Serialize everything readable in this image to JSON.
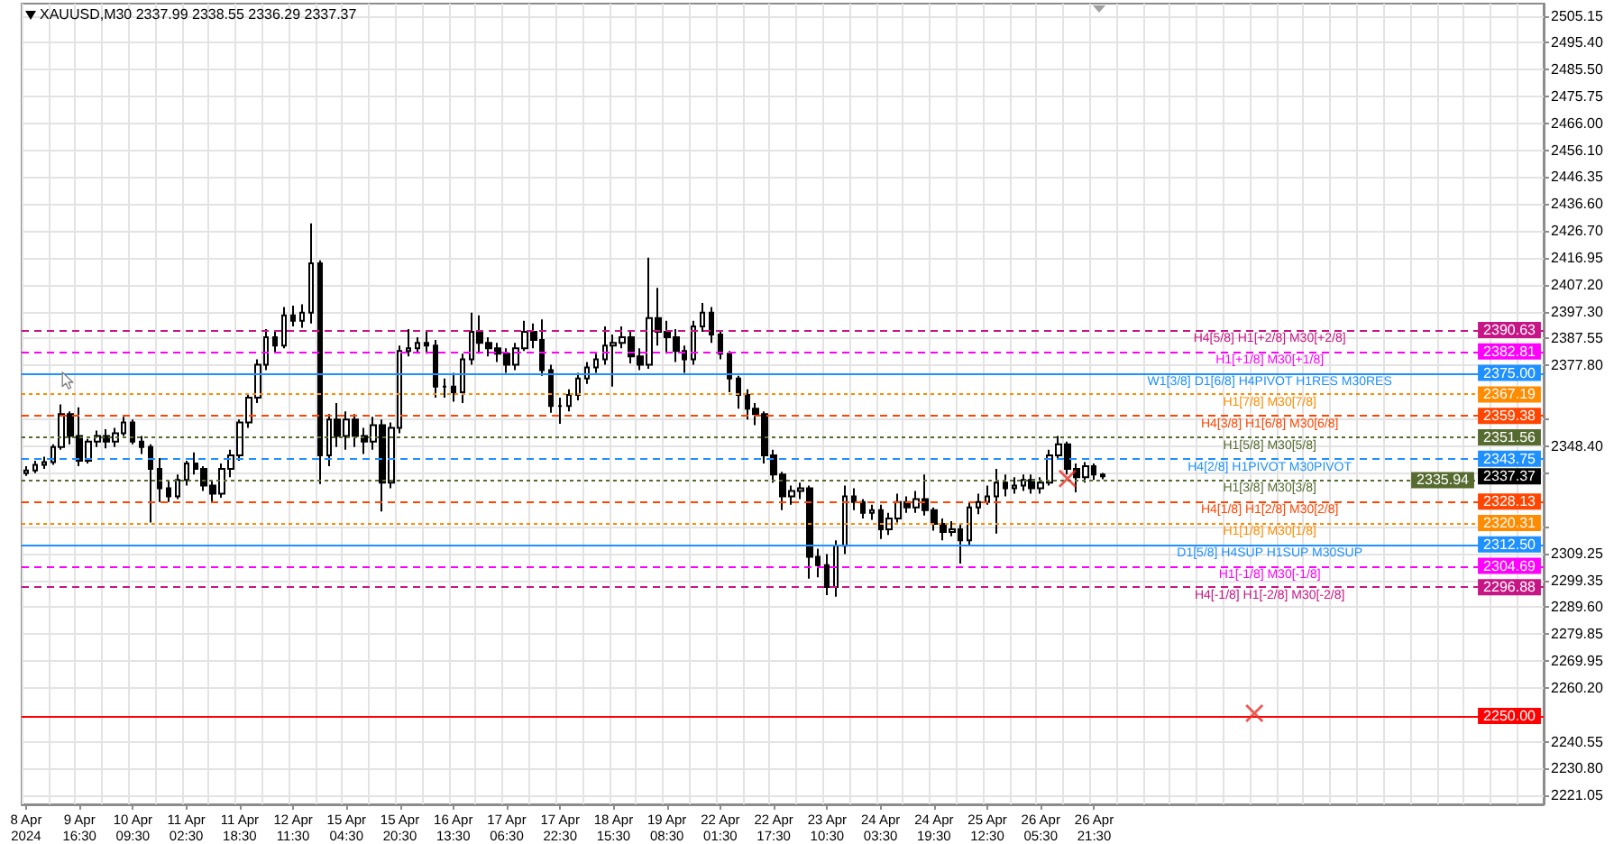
{
  "chart_data": {
    "type": "candlestick",
    "title": "XAUUSD,M30 2337.99 2338.55 2336.29 2337.37",
    "color": "#000000",
    "grid": true,
    "categories": [
      "8 Apr 2024",
      null,
      null,
      null,
      null,
      null,
      "9 Apr 16:30",
      null,
      null,
      null,
      null,
      null,
      "10 Apr 09:30",
      null,
      null,
      null,
      null,
      null,
      "11 Apr 02:30",
      null,
      null,
      null,
      null,
      null,
      "11 Apr 18:30",
      null,
      null,
      null,
      null,
      null,
      "12 Apr 11:30",
      null,
      null,
      null,
      null,
      null,
      "15 Apr 04:30",
      null,
      null,
      null,
      null,
      null,
      "15 Apr 20:30",
      null,
      null,
      null,
      null,
      null,
      "16 Apr 13:30",
      null,
      null,
      null,
      null,
      null,
      "17 Apr 06:30",
      null,
      null,
      null,
      null,
      null,
      "17 Apr 22:30",
      null,
      null,
      null,
      null,
      null,
      "18 Apr 15:30",
      null,
      null,
      null,
      null,
      null,
      "19 Apr 08:30",
      null,
      null,
      null,
      null,
      null,
      "22 Apr 01:30",
      null,
      null,
      null,
      null,
      null,
      "22 Apr 17:30",
      null,
      null,
      null,
      null,
      null,
      "23 Apr 10:30",
      null,
      null,
      null,
      null,
      null,
      "24 Apr 03:30",
      null,
      null,
      null,
      null,
      null,
      "24 Apr 19:30",
      null,
      null,
      null,
      null,
      null,
      "25 Apr 12:30",
      null,
      null,
      null,
      null,
      null,
      "26 Apr 05:30",
      null,
      null,
      null,
      null,
      null,
      "26 Apr 21:30",
      null,
      null,
      null,
      null,
      null,
      null,
      null,
      null,
      null,
      null,
      null,
      null,
      null,
      null,
      null,
      null,
      null,
      null,
      null,
      null,
      null,
      null,
      null,
      null,
      null,
      null,
      null,
      null,
      null,
      null,
      null,
      null,
      null,
      null,
      null,
      null,
      null,
      null,
      null,
      null,
      null,
      null,
      null,
      null,
      null,
      null,
      null,
      null,
      null,
      null
    ],
    "ohlc": [
      [
        2338.5,
        2341,
        2337.5,
        2339.5
      ],
      [
        2339.5,
        2343,
        2338.5,
        2341.5
      ],
      [
        2341.5,
        2344.5,
        2340,
        2342.5
      ],
      [
        2342.5,
        2349,
        2341.5,
        2348
      ],
      [
        2348,
        2363.5,
        2347,
        2360
      ],
      [
        2360,
        2361,
        2349,
        2352
      ],
      [
        2352,
        2362.5,
        2341,
        2343
      ],
      [
        2343,
        2351,
        2342,
        2350
      ],
      [
        2350,
        2354,
        2348,
        2352
      ],
      [
        2352,
        2354.5,
        2347.5,
        2350
      ],
      [
        2350,
        2355,
        2348,
        2353
      ],
      [
        2353,
        2359,
        2352,
        2357
      ],
      [
        2357,
        2358,
        2349,
        2350
      ],
      [
        2350,
        2352,
        2345.5,
        2348
      ],
      [
        2348,
        2349,
        2320.5,
        2340
      ],
      [
        2340,
        2344,
        2328,
        2333
      ],
      [
        2333,
        2336,
        2328,
        2330
      ],
      [
        2330,
        2338,
        2329,
        2336
      ],
      [
        2336,
        2343,
        2334,
        2342
      ],
      [
        2342,
        2346,
        2338,
        2340
      ],
      [
        2340,
        2341,
        2332,
        2334
      ],
      [
        2334,
        2336,
        2328,
        2331
      ],
      [
        2331,
        2342,
        2329.5,
        2340
      ],
      [
        2340,
        2347,
        2337,
        2345
      ],
      [
        2345,
        2358,
        2343,
        2357
      ],
      [
        2357,
        2367,
        2355,
        2366
      ],
      [
        2366,
        2380,
        2364,
        2378
      ],
      [
        2378,
        2391,
        2376,
        2388
      ],
      [
        2388,
        2390,
        2382.5,
        2385
      ],
      [
        2385,
        2399,
        2384,
        2396
      ],
      [
        2396,
        2399.5,
        2392,
        2394
      ],
      [
        2394,
        2400,
        2391.5,
        2397
      ],
      [
        2397,
        2429.5,
        2393,
        2415
      ],
      [
        2415,
        2416,
        2334.5,
        2345
      ],
      [
        2345,
        2360,
        2341,
        2358
      ],
      [
        2358,
        2364,
        2348,
        2352
      ],
      [
        2352,
        2361,
        2347,
        2358
      ],
      [
        2358,
        2360,
        2348,
        2352
      ],
      [
        2352,
        2355,
        2345.5,
        2350
      ],
      [
        2350,
        2359,
        2347,
        2356
      ],
      [
        2356,
        2358,
        2324.5,
        2335
      ],
      [
        2335,
        2357,
        2333,
        2355
      ],
      [
        2355,
        2385,
        2353,
        2383
      ],
      [
        2383,
        2391,
        2381,
        2384
      ],
      [
        2384,
        2388,
        2382,
        2386
      ],
      [
        2386,
        2390,
        2382,
        2385
      ],
      [
        2385,
        2387,
        2366,
        2370
      ],
      [
        2370,
        2373,
        2366,
        2370
      ],
      [
        2370,
        2375,
        2364.5,
        2368
      ],
      [
        2368,
        2382,
        2364,
        2380
      ],
      [
        2380,
        2397,
        2378,
        2390
      ],
      [
        2390,
        2396,
        2382,
        2386
      ],
      [
        2386,
        2388,
        2381,
        2384
      ],
      [
        2384,
        2386,
        2379,
        2382
      ],
      [
        2382,
        2384,
        2375,
        2378
      ],
      [
        2378,
        2386,
        2376,
        2384
      ],
      [
        2384,
        2394,
        2383,
        2390
      ],
      [
        2390,
        2393,
        2384,
        2387
      ],
      [
        2387,
        2394.5,
        2374,
        2376
      ],
      [
        2376,
        2378,
        2360.5,
        2363
      ],
      [
        2363,
        2366,
        2356.5,
        2363
      ],
      [
        2363,
        2369,
        2361,
        2367
      ],
      [
        2367,
        2375,
        2365,
        2373
      ],
      [
        2373,
        2379,
        2371,
        2377
      ],
      [
        2377,
        2382,
        2375,
        2380
      ],
      [
        2380,
        2392,
        2378,
        2385
      ],
      [
        2385,
        2389,
        2370,
        2386
      ],
      [
        2386,
        2392,
        2384,
        2388
      ],
      [
        2388,
        2390,
        2378.5,
        2381
      ],
      [
        2381,
        2384,
        2376,
        2378
      ],
      [
        2378,
        2417,
        2376.5,
        2395
      ],
      [
        2395,
        2406,
        2385,
        2390
      ],
      [
        2390,
        2394,
        2382,
        2388
      ],
      [
        2388,
        2391,
        2379,
        2383
      ],
      [
        2383,
        2385,
        2375,
        2380
      ],
      [
        2380,
        2394,
        2378,
        2392
      ],
      [
        2392,
        2400.5,
        2390,
        2397
      ],
      [
        2397,
        2399,
        2386,
        2389
      ],
      [
        2389,
        2390,
        2380,
        2382
      ],
      [
        2382,
        2383,
        2368,
        2373
      ],
      [
        2373,
        2374,
        2362,
        2367
      ],
      [
        2367,
        2369,
        2358,
        2362
      ],
      [
        2362,
        2364,
        2356,
        2360
      ],
      [
        2360,
        2361,
        2342,
        2345
      ],
      [
        2345,
        2347,
        2335,
        2338
      ],
      [
        2338,
        2339,
        2325,
        2330
      ],
      [
        2330,
        2334,
        2327,
        2332
      ],
      [
        2332,
        2335,
        2329,
        2333
      ],
      [
        2333,
        2334,
        2300,
        2308
      ],
      [
        2308,
        2311,
        2300.5,
        2305
      ],
      [
        2305,
        2309,
        2294,
        2297
      ],
      [
        2297,
        2314,
        2293.5,
        2312
      ],
      [
        2312,
        2334,
        2309,
        2330
      ],
      [
        2330,
        2333,
        2325,
        2328
      ],
      [
        2328,
        2329,
        2322,
        2324
      ],
      [
        2324,
        2327,
        2321.5,
        2325
      ],
      [
        2325,
        2327,
        2314.5,
        2318
      ],
      [
        2318,
        2324,
        2316,
        2322
      ],
      [
        2322,
        2331,
        2320.5,
        2328
      ],
      [
        2328,
        2330,
        2324,
        2326
      ],
      [
        2326,
        2332,
        2324,
        2329
      ],
      [
        2329,
        2338,
        2323,
        2325
      ],
      [
        2325,
        2326,
        2317.5,
        2320
      ],
      [
        2320,
        2322,
        2314,
        2317
      ],
      [
        2317,
        2321,
        2315.5,
        2318
      ],
      [
        2318,
        2320,
        2305.5,
        2314
      ],
      [
        2314,
        2328,
        2312,
        2326
      ],
      [
        2326,
        2331,
        2323.5,
        2328
      ],
      [
        2328,
        2334,
        2327,
        2330
      ],
      [
        2330,
        2340,
        2316.5,
        2335
      ],
      [
        2335,
        2338,
        2330,
        2333
      ],
      [
        2333,
        2337,
        2331,
        2334
      ],
      [
        2334,
        2338,
        2332,
        2336
      ],
      [
        2336,
        2338,
        2331,
        2333
      ],
      [
        2333,
        2337,
        2331,
        2335
      ],
      [
        2335,
        2347,
        2334,
        2345
      ],
      [
        2345,
        2352,
        2344,
        2349
      ],
      [
        2349,
        2350,
        2338,
        2340
      ],
      [
        2340,
        2342,
        2331.5,
        2337
      ],
      [
        2337,
        2342.5,
        2335,
        2341
      ],
      [
        2341,
        2342,
        2336,
        2338
      ],
      [
        2337.99,
        2338.55,
        2336.29,
        2337.37
      ],
      null,
      null,
      null,
      null,
      null,
      null,
      null,
      null,
      null,
      null,
      null,
      null,
      null,
      null,
      null,
      null,
      null,
      null,
      null,
      null,
      null,
      null,
      null,
      null,
      null,
      null,
      null,
      null,
      null,
      null,
      null,
      null,
      null,
      null,
      null,
      null,
      null,
      null,
      null,
      null,
      null,
      null,
      null,
      null,
      null,
      null,
      null,
      null,
      null
    ],
    "series": [
      {
        "type": "scatter",
        "marker": "cross",
        "color": "#e8322b",
        "values": [
          null,
          null,
          null,
          null,
          null,
          null,
          null,
          null,
          null,
          null,
          null,
          null,
          null,
          null,
          null,
          null,
          null,
          null,
          null,
          null,
          null,
          null,
          null,
          null,
          null,
          null,
          null,
          null,
          null,
          null,
          null,
          null,
          null,
          null,
          null,
          null,
          null,
          null,
          null,
          null,
          null,
          null,
          null,
          null,
          null,
          null,
          null,
          null,
          null,
          null,
          null,
          null,
          null,
          null,
          null,
          null,
          null,
          null,
          null,
          null,
          null,
          null,
          null,
          null,
          null,
          null,
          null,
          null,
          null,
          null,
          null,
          null,
          null,
          null,
          null,
          null,
          null,
          null,
          null,
          null,
          null,
          null,
          null,
          null,
          null,
          null,
          null,
          null,
          null,
          null,
          null,
          null,
          null,
          null,
          null,
          null,
          null,
          null,
          null,
          null,
          null,
          null,
          null,
          null,
          null,
          null,
          null,
          null,
          null,
          null,
          null,
          null,
          null,
          null,
          null,
          null,
          null,
          2336.5,
          null,
          null,
          null,
          null,
          null,
          null,
          null,
          null,
          null,
          null,
          null,
          null,
          null,
          null,
          null,
          null,
          null,
          null,
          null,
          null,
          2251,
          null,
          null,
          null,
          null,
          null,
          null,
          null,
          null,
          null,
          null,
          null,
          null,
          null,
          null,
          null,
          null,
          null,
          null,
          null,
          null,
          null,
          null,
          null,
          null,
          null,
          null,
          null,
          null,
          null,
          null,
          null,
          null
        ]
      }
    ],
    "ylim": [
      2217.8,
      2509.6
    ],
    "yticks": [
      {
        "value": 2221.05,
        "label": "2221.05"
      },
      {
        "value": 2230.8,
        "label": "2230.80"
      },
      {
        "value": 2240.55,
        "label": "2240.55"
      },
      {
        "value": 2260.2,
        "label": "2260.20"
      },
      {
        "value": 2269.95,
        "label": "2269.95"
      },
      {
        "value": 2279.85,
        "label": "2279.85"
      },
      {
        "value": 2289.6,
        "label": "2289.60"
      },
      {
        "value": 2299.35,
        "label": "2299.35"
      },
      {
        "value": 2309.25,
        "label": "2309.25"
      },
      {
        "value": 2319,
        "label": null
      },
      {
        "value": 2338.65,
        "label": null
      },
      {
        "value": 2348.4,
        "label": "2348.40"
      },
      {
        "value": 2358.15,
        "label": null
      },
      {
        "value": 2377.8,
        "label": "2377.80"
      },
      {
        "value": 2387.55,
        "label": "2387.55"
      },
      {
        "value": 2397.3,
        "label": "2397.30"
      },
      {
        "value": 2407.2,
        "label": "2407.20"
      },
      {
        "value": 2416.95,
        "label": "2416.95"
      },
      {
        "value": 2426.7,
        "label": "2426.70"
      },
      {
        "value": 2436.6,
        "label": "2436.60"
      },
      {
        "value": 2446.35,
        "label": "2446.35"
      },
      {
        "value": 2456.1,
        "label": "2456.10"
      },
      {
        "value": 2466,
        "label": "2466.00"
      },
      {
        "value": 2475.75,
        "label": "2475.75"
      },
      {
        "value": 2485.5,
        "label": "2485.50"
      },
      {
        "value": 2495.4,
        "label": "2495.40"
      },
      {
        "value": 2505.15,
        "label": "2505.15"
      }
    ],
    "ref_lines": [
      {
        "axis": "y",
        "value": 2390.63,
        "label": "H4[5/8] H1[+2/8] M30[+2/8]",
        "color": "#c71585",
        "line_style": "dashed"
      },
      {
        "axis": "y",
        "value": 2382.81,
        "label": "H1[+1/8] M30[+1/8]",
        "color": "#ff00ff",
        "line_style": "dashed"
      },
      {
        "axis": "y",
        "value": 2375,
        "label": "W1[3/8] D1[6/8] H4PIVOT H1RES M30RES",
        "color": "#1e90ff",
        "line_style": "solid"
      },
      {
        "axis": "y",
        "value": 2367.19,
        "label": "H1[7/8] M30[7/8]",
        "color": "#ff8c00",
        "line_style": "dotted"
      },
      {
        "axis": "y",
        "value": 2359.38,
        "label": "H4[3/8] H1[6/8] M30[6/8]",
        "color": "#ff4500",
        "line_style": "dashed"
      },
      {
        "axis": "y",
        "value": 2351.56,
        "label": "H1[5/8] M30[5/8]",
        "color": "#556b2f",
        "line_style": "dotted"
      },
      {
        "axis": "y",
        "value": 2343.75,
        "label": "H4[2/8] H1PIVOT M30PIVOT",
        "color": "#1e90ff",
        "line_style": "dashed"
      },
      {
        "axis": "y",
        "value": 2335.94,
        "label": "H1[3/8] M30[3/8]",
        "color": "#556b2f",
        "line_style": "dotted"
      },
      {
        "axis": "y",
        "value": 2328.13,
        "label": "H4[1/8] H1[2/8] M30[2/8]",
        "color": "#ff4500",
        "line_style": "dashed"
      },
      {
        "axis": "y",
        "value": 2320.31,
        "label": "H1[1/8] M30[1/8]",
        "color": "#ff8c00",
        "line_style": "dotted"
      },
      {
        "axis": "y",
        "value": 2312.5,
        "label": "D1[5/8] H4SUP H1SUP M30SUP",
        "color": "#1e90ff",
        "line_style": "solid"
      },
      {
        "axis": "y",
        "value": 2304.69,
        "label": "H1[-1/8] M30[-1/8]",
        "color": "#ff00ff",
        "line_style": "dashed"
      },
      {
        "axis": "y",
        "value": 2296.88,
        "label": "H4[-1/8] H1[-2/8] M30[-2/8]",
        "color": "#c71585",
        "line_style": "dashed"
      },
      {
        "axis": "y",
        "value": 2250,
        "color": "#ff0000",
        "line_style": "solid"
      }
    ],
    "annotations": [
      {
        "text": "2390.63",
        "y": 2390.63
      },
      {
        "text": "2382.81",
        "y": 2382.81
      },
      {
        "text": "2375.00",
        "y": 2375
      },
      {
        "text": "2367.19",
        "y": 2367.19
      },
      {
        "text": "2359.38",
        "y": 2359.38
      },
      {
        "text": "2351.56",
        "y": 2351.56
      },
      {
        "text": "2343.75",
        "y": 2343.75
      },
      {
        "text": "2337.37",
        "y": 2337.37
      },
      {
        "text": "2335.94",
        "y": 2335.94
      },
      {
        "text": "2328.13",
        "y": 2328.13
      },
      {
        "text": "2320.31",
        "y": 2320.31
      },
      {
        "text": "2312.50",
        "y": 2312.5
      },
      {
        "text": "2304.69",
        "y": 2304.69
      },
      {
        "text": "2296.88",
        "y": 2296.88
      },
      {
        "text": "2250.00",
        "y": 2250
      }
    ]
  }
}
